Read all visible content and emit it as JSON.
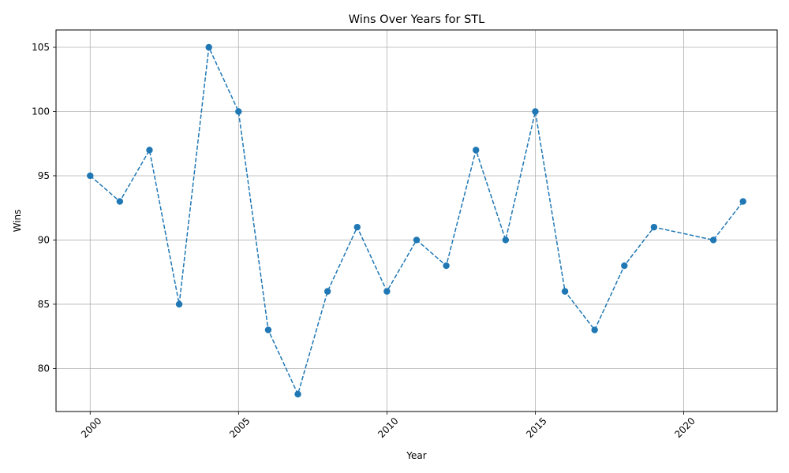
{
  "chart_data": {
    "type": "line",
    "title": "Wins Over Years for STL",
    "xlabel": "Year",
    "ylabel": "Wins",
    "x": [
      2000,
      2001,
      2002,
      2003,
      2004,
      2005,
      2006,
      2007,
      2008,
      2009,
      2010,
      2011,
      2012,
      2013,
      2014,
      2015,
      2016,
      2017,
      2018,
      2019,
      2021,
      2022
    ],
    "series": [
      {
        "values": [
          95,
          93,
          97,
          85,
          105,
          100,
          83,
          78,
          86,
          91,
          86,
          90,
          88,
          97,
          90,
          100,
          86,
          83,
          88,
          91,
          90,
          93
        ],
        "color": "#1f77b4",
        "line_style": "dashed",
        "marker": "circle"
      }
    ],
    "xlim": [
      1998.85,
      2023.15
    ],
    "ylim": [
      76.65,
      106.35
    ],
    "xticks": [
      2000,
      2005,
      2010,
      2015,
      2020
    ],
    "yticks": [
      80,
      85,
      90,
      95,
      100,
      105
    ],
    "xtick_rotation": 45,
    "grid": true,
    "legend": null
  }
}
